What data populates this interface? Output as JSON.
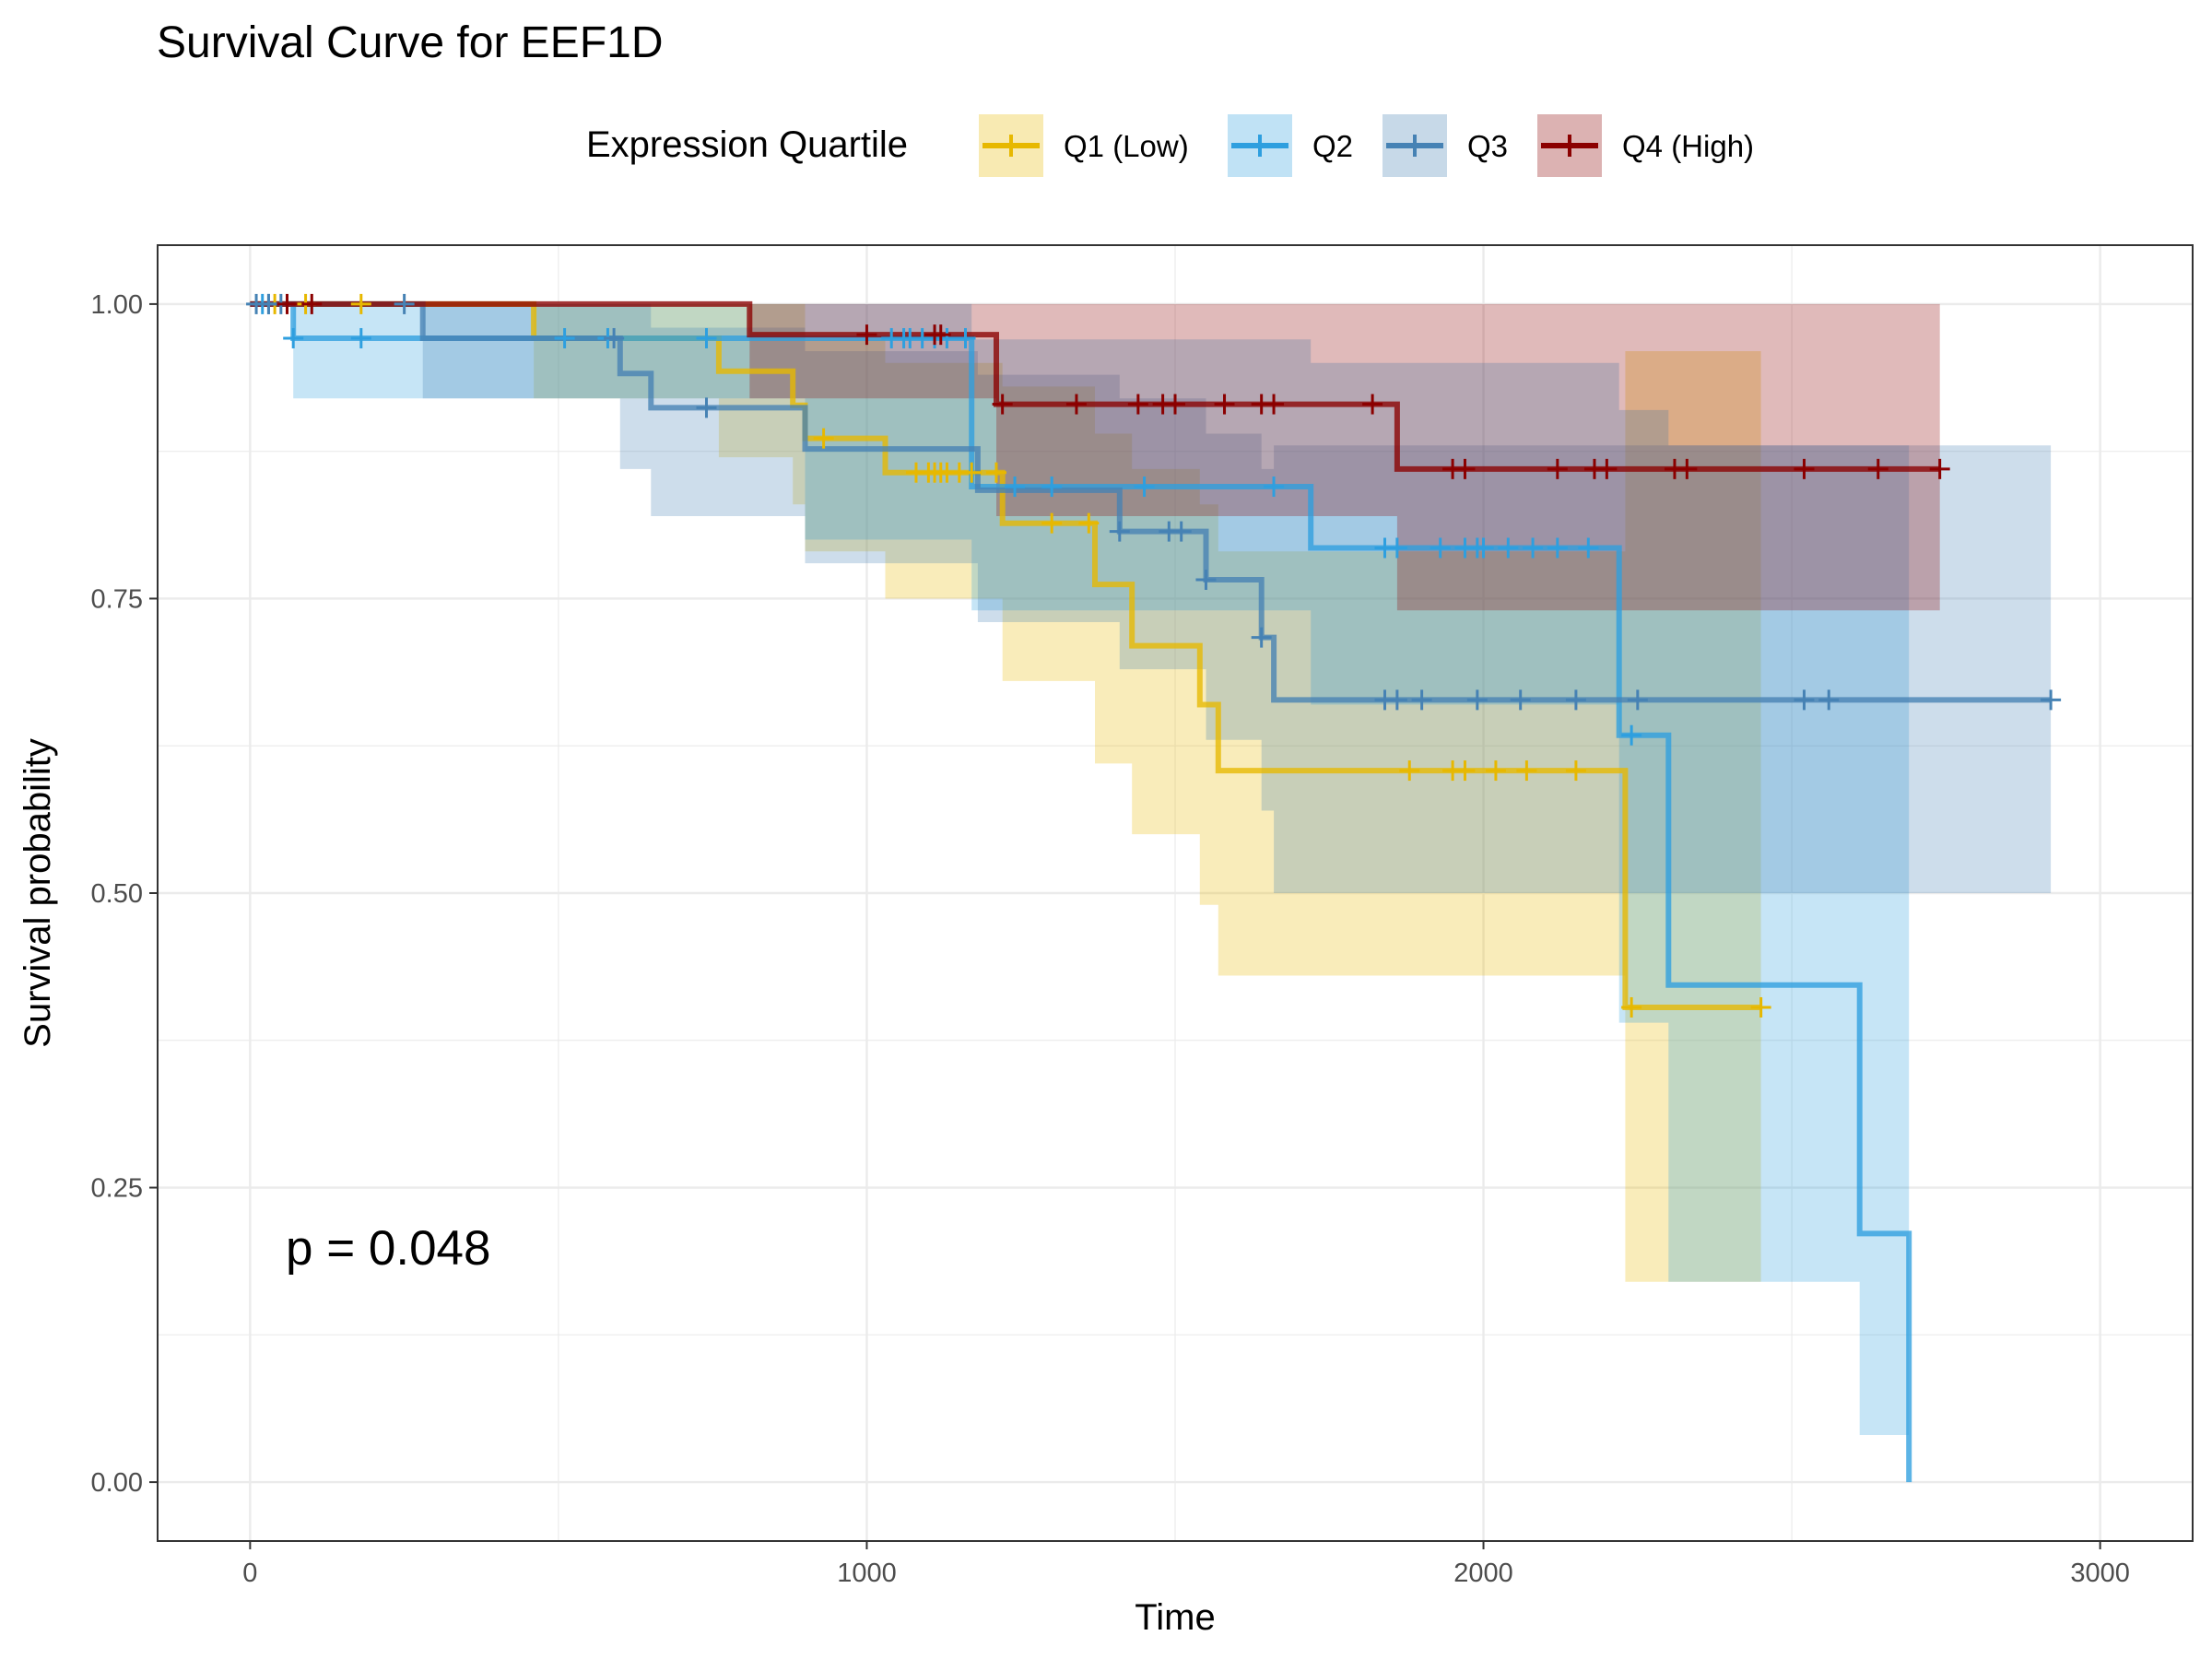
{
  "chart_data": {
    "type": "line",
    "subtype": "kaplan-meier",
    "title": "Survival Curve for EEF1D",
    "xlabel": "Time",
    "ylabel": "Survival probability",
    "xlim": [
      -150,
      3150
    ],
    "ylim": [
      -0.05,
      1.05
    ],
    "xticks": [
      "0",
      "1000",
      "2000",
      "3000"
    ],
    "yticks": [
      "0.00",
      "0.25",
      "0.50",
      "0.75",
      "1.00"
    ],
    "grid": true,
    "legend": {
      "title": "Expression Quartile",
      "position": "top"
    },
    "annotation": "p = 0.048",
    "series": [
      {
        "name": "Q1 (Low)",
        "color": "#E7B800",
        "steps": [
          [
            0,
            1.0
          ],
          [
            460,
            0.971
          ],
          [
            760,
            0.943
          ],
          [
            880,
            0.914
          ],
          [
            900,
            0.886
          ],
          [
            1030,
            0.857
          ],
          [
            1220,
            0.814
          ],
          [
            1370,
            0.762
          ],
          [
            1430,
            0.71
          ],
          [
            1540,
            0.66
          ],
          [
            1570,
            0.604
          ],
          [
            2230,
            0.403
          ],
          [
            2450,
            0.403
          ]
        ],
        "ci": [
          [
            0,
            1.0,
            1.0
          ],
          [
            460,
            1.0,
            0.92
          ],
          [
            760,
            1.0,
            0.87
          ],
          [
            880,
            1.0,
            0.83
          ],
          [
            900,
            0.97,
            0.79
          ],
          [
            1030,
            0.95,
            0.75
          ],
          [
            1220,
            0.93,
            0.68
          ],
          [
            1370,
            0.89,
            0.61
          ],
          [
            1430,
            0.86,
            0.55
          ],
          [
            1540,
            0.83,
            0.49
          ],
          [
            1570,
            0.79,
            0.43
          ],
          [
            2230,
            0.96,
            0.17
          ],
          [
            2450,
            0.96,
            0.17
          ]
        ],
        "censors": [
          40,
          90,
          180,
          930,
          1080,
          1100,
          1110,
          1120,
          1130,
          1150,
          1170,
          1210,
          1300,
          1360,
          1880,
          1950,
          1970,
          2020,
          2070,
          2150,
          2240,
          2450
        ]
      },
      {
        "name": "Q2",
        "color": "#2E9FDF",
        "steps": [
          [
            0,
            1.0
          ],
          [
            70,
            0.971
          ],
          [
            1170,
            0.845
          ],
          [
            1720,
            0.793
          ],
          [
            2220,
            0.634
          ],
          [
            2300,
            0.422
          ],
          [
            2610,
            0.211
          ],
          [
            2690,
            0.0
          ]
        ],
        "ci": [
          [
            0,
            1.0,
            1.0
          ],
          [
            70,
            1.0,
            0.92
          ],
          [
            900,
            1.0,
            0.8
          ],
          [
            1170,
            0.97,
            0.74
          ],
          [
            1720,
            0.95,
            0.66
          ],
          [
            2220,
            0.91,
            0.39
          ],
          [
            2300,
            0.88,
            0.17
          ],
          [
            2610,
            0.88,
            0.04
          ],
          [
            2690,
            0.88,
            0.04
          ]
        ],
        "censors": [
          20,
          30,
          70,
          180,
          510,
          580,
          740,
          1040,
          1060,
          1070,
          1090,
          1110,
          1130,
          1160,
          1240,
          1300,
          1450,
          1660,
          1840,
          1860,
          1930,
          1970,
          1990,
          2000,
          2040,
          2080,
          2120,
          2170,
          2240
        ]
      },
      {
        "name": "Q3",
        "color": "#4682B4",
        "steps": [
          [
            0,
            1.0
          ],
          [
            280,
            0.971
          ],
          [
            600,
            0.941
          ],
          [
            650,
            0.912
          ],
          [
            870,
            0.912
          ],
          [
            900,
            0.877
          ],
          [
            1180,
            0.842
          ],
          [
            1410,
            0.807
          ],
          [
            1550,
            0.766
          ],
          [
            1640,
            0.717
          ],
          [
            1660,
            0.664
          ],
          [
            2920,
            0.664
          ]
        ],
        "ci": [
          [
            0,
            1.0,
            1.0
          ],
          [
            280,
            1.0,
            0.92
          ],
          [
            600,
            1.0,
            0.86
          ],
          [
            650,
            0.98,
            0.82
          ],
          [
            900,
            0.96,
            0.78
          ],
          [
            1180,
            0.94,
            0.73
          ],
          [
            1410,
            0.92,
            0.69
          ],
          [
            1550,
            0.89,
            0.63
          ],
          [
            1640,
            0.86,
            0.57
          ],
          [
            1660,
            0.88,
            0.5
          ],
          [
            2920,
            0.88,
            0.5
          ]
        ],
        "censors": [
          10,
          30,
          50,
          250,
          590,
          740,
          1410,
          1490,
          1510,
          1550,
          1640,
          1840,
          1860,
          1900,
          1990,
          2060,
          2150,
          2250,
          2520,
          2560,
          2920
        ]
      },
      {
        "name": "Q4 (High)",
        "color": "#8B0000",
        "steps": [
          [
            0,
            1.0
          ],
          [
            810,
            0.974
          ],
          [
            1210,
            0.915
          ],
          [
            1860,
            0.86
          ],
          [
            2740,
            0.86
          ]
        ],
        "ci": [
          [
            0,
            1.0,
            1.0
          ],
          [
            810,
            1.0,
            0.92
          ],
          [
            1210,
            1.0,
            0.82
          ],
          [
            1860,
            1.0,
            0.74
          ],
          [
            2740,
            1.0,
            0.74
          ]
        ],
        "censors": [
          60,
          100,
          1000,
          1110,
          1120,
          1220,
          1340,
          1440,
          1480,
          1500,
          1580,
          1640,
          1660,
          1820,
          1950,
          1970,
          2120,
          2180,
          2200,
          2310,
          2330,
          2520,
          2640,
          2740
        ]
      }
    ]
  }
}
